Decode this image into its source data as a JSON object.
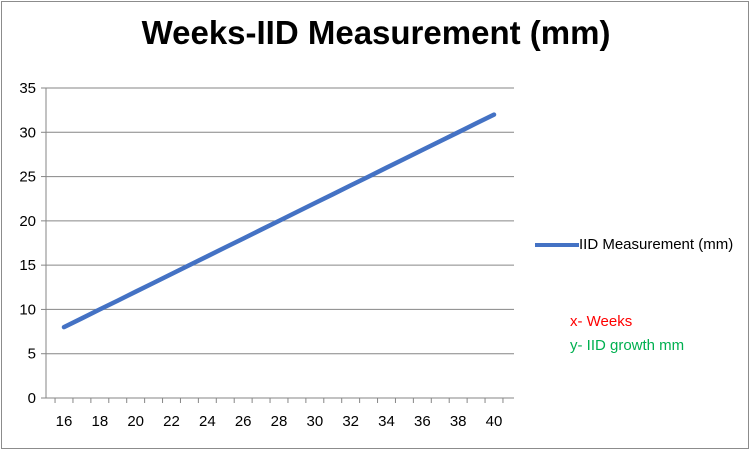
{
  "chart_data": {
    "type": "line",
    "title": "Weeks-IID Measurement (mm)",
    "xlabel": "",
    "ylabel": "",
    "x": [
      16,
      17,
      18,
      19,
      20,
      21,
      22,
      23,
      24,
      25,
      26,
      27,
      28,
      29,
      30,
      31,
      32,
      33,
      34,
      35,
      36,
      37,
      38,
      39,
      40
    ],
    "series": [
      {
        "name": "IID Measurement (mm)",
        "color": "#4472c4",
        "values": [
          8,
          9,
          10,
          11,
          12,
          13,
          14,
          15,
          16,
          17,
          18,
          19,
          20,
          21,
          22,
          23,
          24,
          25,
          26,
          27,
          28,
          29,
          30,
          31,
          32
        ]
      }
    ],
    "xlim": [
      16,
      40
    ],
    "ylim": [
      0,
      35
    ],
    "xticks": [
      "16",
      "18",
      "20",
      "22",
      "24",
      "26",
      "28",
      "30",
      "32",
      "34",
      "36",
      "38",
      "40"
    ],
    "yticks": [
      "0",
      "5",
      "10",
      "15",
      "20",
      "25",
      "30",
      "35"
    ],
    "grid": "horizontal",
    "legend_position": "right"
  },
  "annotations": {
    "x_note": "x- Weeks",
    "x_color": "#ff0000",
    "y_note": "y- IID growth mm",
    "y_color": "#00b050"
  },
  "colors": {
    "gridline": "#868686",
    "axis": "#868686"
  }
}
